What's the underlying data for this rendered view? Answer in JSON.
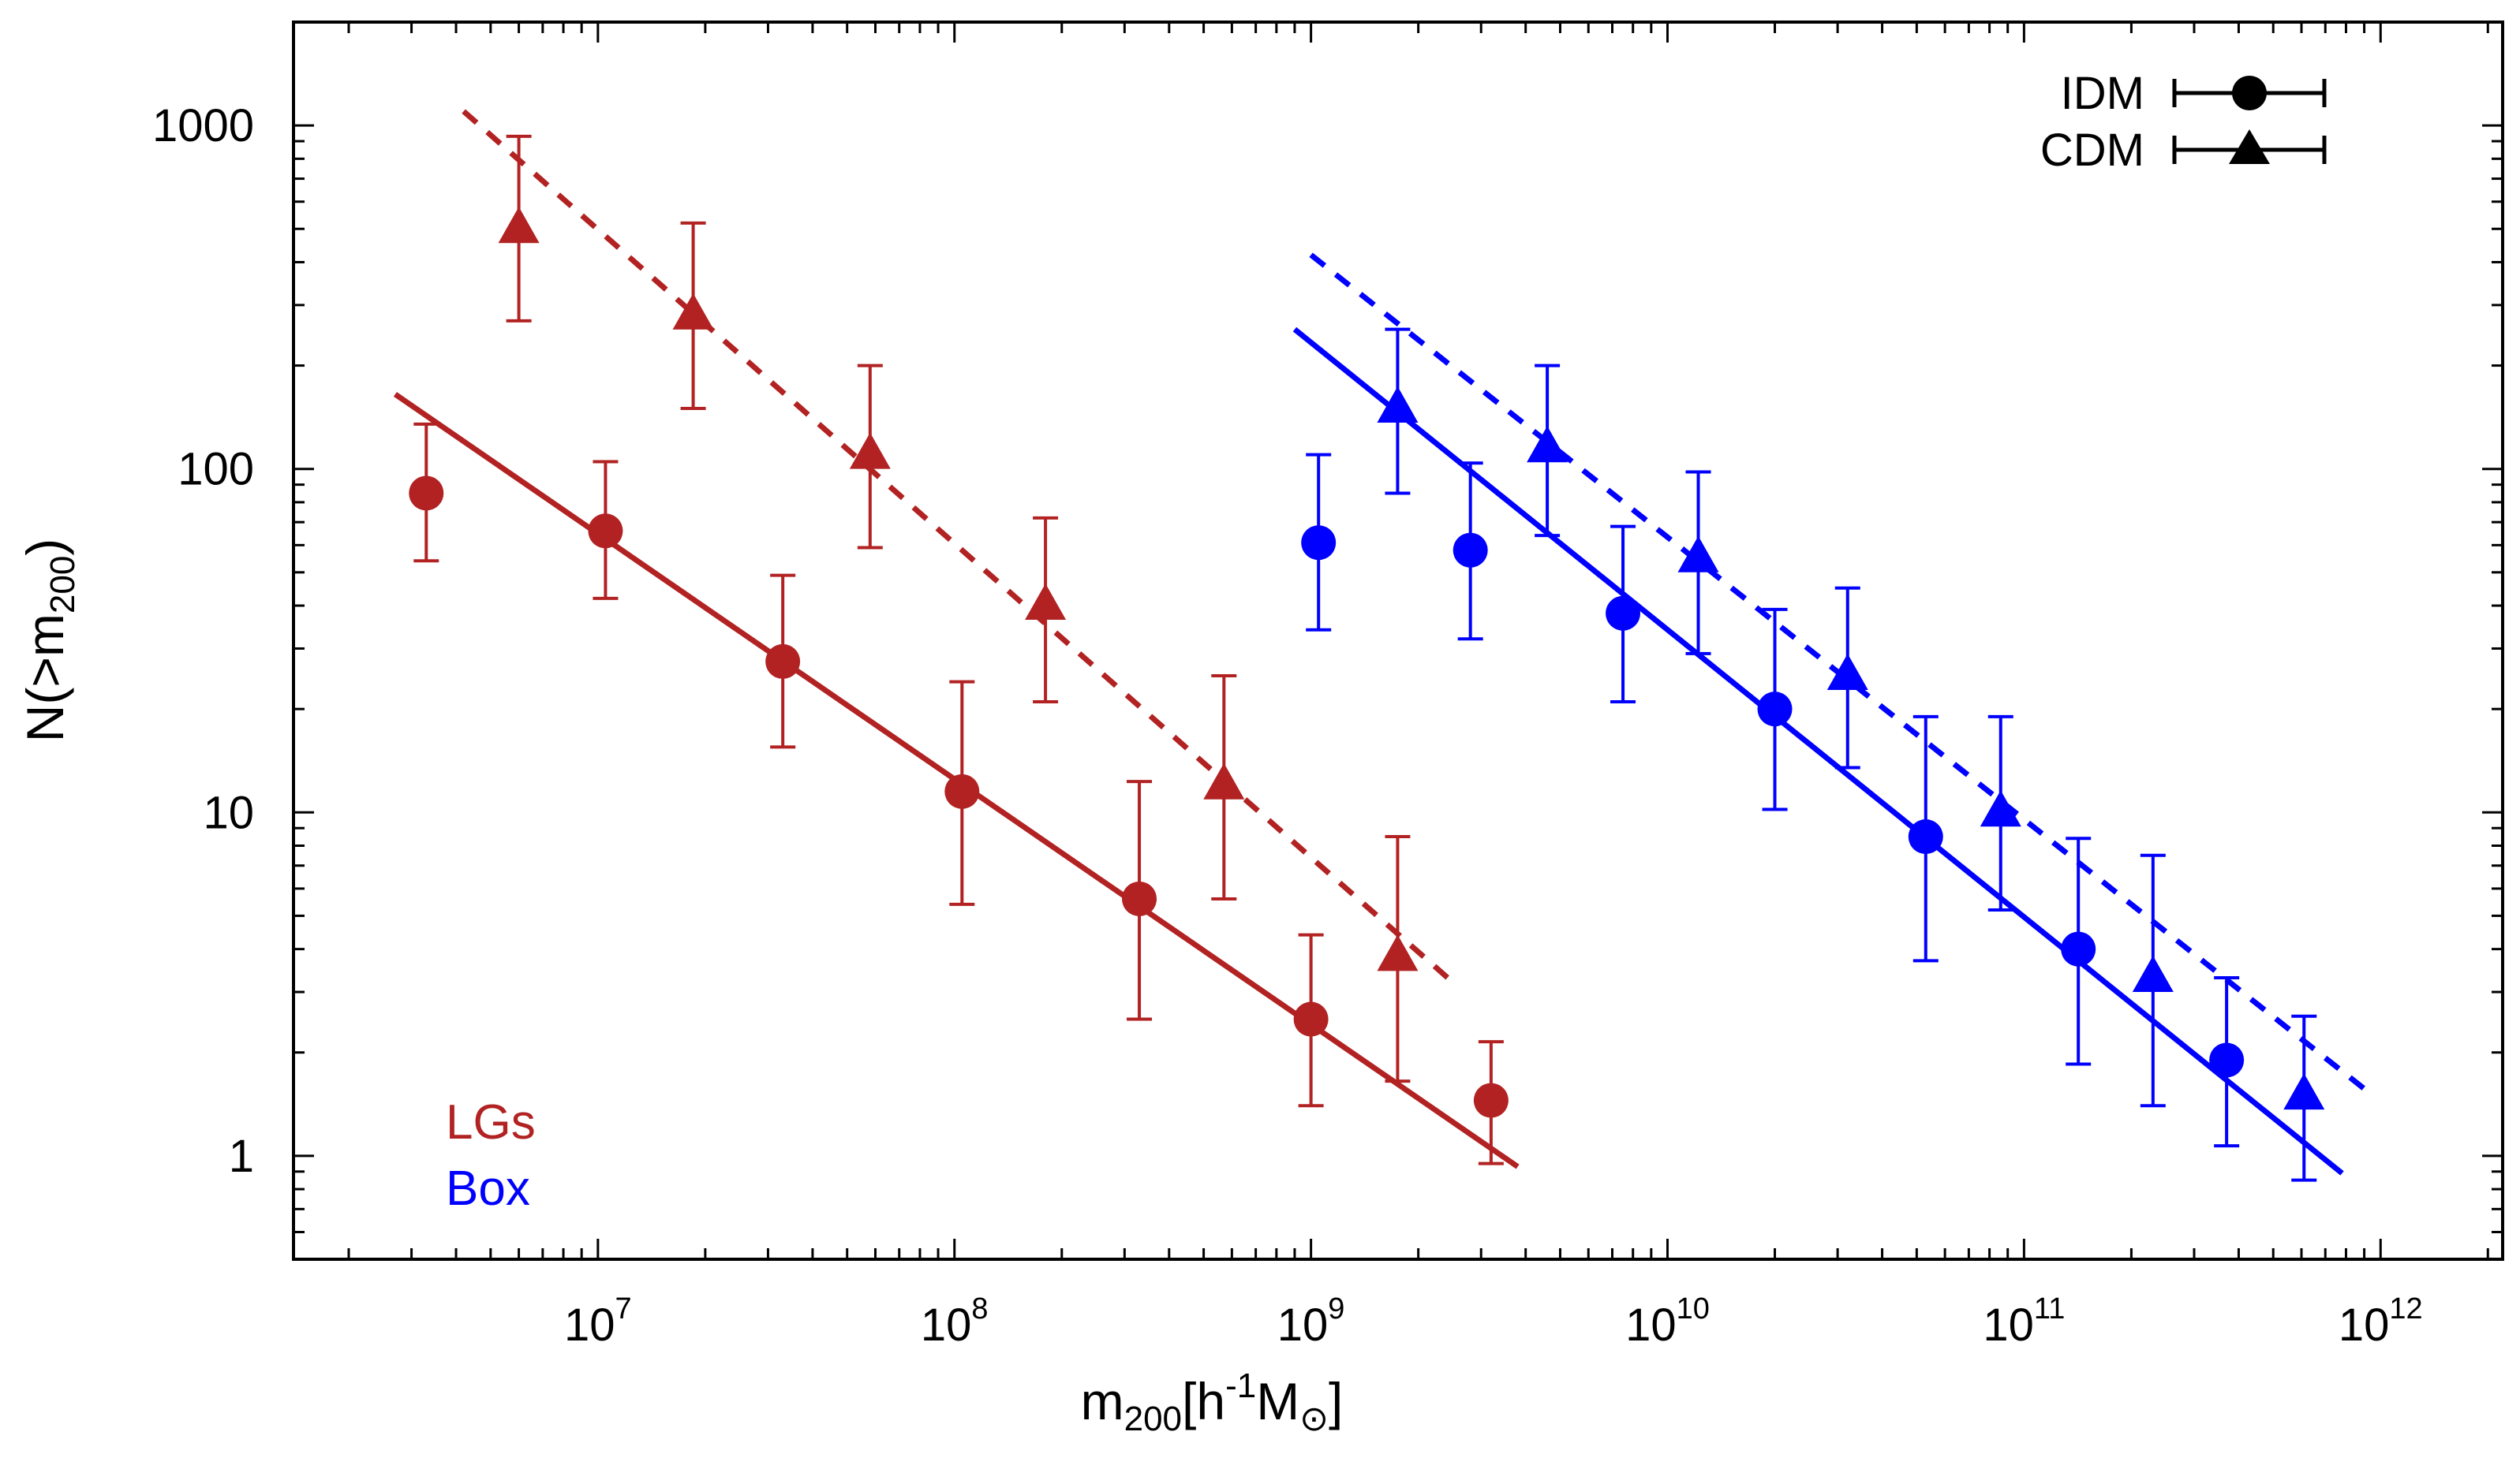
{
  "chart_data": {
    "type": "scatter",
    "title": "",
    "xlabel": {
      "base": "m",
      "sub": "200",
      "bracket_open": "[h",
      "sup": "-1",
      "unit": "M",
      "sun_symbol": "⊙",
      "bracket_close": "]"
    },
    "ylabel": {
      "prefix": "N(>m",
      "sub": "200",
      "suffix": ")"
    },
    "xscale": "log",
    "yscale": "log",
    "xlim": [
      1400000.0,
      2200000000000.0
    ],
    "ylim": [
      0.5,
      2000
    ],
    "x_ticks": [
      {
        "value": 10000000.0,
        "base": "10",
        "exp": "7"
      },
      {
        "value": 100000000.0,
        "base": "10",
        "exp": "8"
      },
      {
        "value": 1000000000.0,
        "base": "10",
        "exp": "9"
      },
      {
        "value": 10000000000.0,
        "base": "10",
        "exp": "10"
      },
      {
        "value": 100000000000.0,
        "base": "10",
        "exp": "11"
      },
      {
        "value": 1000000000000.0,
        "base": "10",
        "exp": "12"
      }
    ],
    "y_ticks": [
      {
        "value": 1,
        "label": "1"
      },
      {
        "value": 10,
        "label": "10"
      },
      {
        "value": 100,
        "label": "100"
      },
      {
        "value": 1000,
        "label": "1000"
      }
    ],
    "grid": false,
    "legend": {
      "position": "top-right",
      "entries": [
        {
          "label": "IDM",
          "marker": "circle"
        },
        {
          "label": "CDM",
          "marker": "triangle"
        }
      ]
    },
    "group_labels": [
      {
        "text": "LGs",
        "color": "#b22222"
      },
      {
        "text": "Box",
        "color": "#0000ff"
      }
    ],
    "series": [
      {
        "name": "LGs IDM",
        "model": "IDM",
        "group": "LGs",
        "color": "#b22222",
        "marker": "circle",
        "points": [
          {
            "x": 3300000.0,
            "y": 85,
            "ylo": 54,
            "yhi": 135
          },
          {
            "x": 10500000.0,
            "y": 66,
            "ylo": 42,
            "yhi": 105
          },
          {
            "x": 33000000.0,
            "y": 27.5,
            "ylo": 15.5,
            "yhi": 49
          },
          {
            "x": 105000000.0,
            "y": 11.5,
            "ylo": 5.4,
            "yhi": 24
          },
          {
            "x": 330000000.0,
            "y": 5.6,
            "ylo": 2.5,
            "yhi": 12.3
          },
          {
            "x": 1000000000.0,
            "y": 2.5,
            "ylo": 1.4,
            "yhi": 4.4
          },
          {
            "x": 3200000000.0,
            "y": 1.45,
            "ylo": 0.95,
            "yhi": 2.15
          }
        ]
      },
      {
        "name": "LGs CDM",
        "model": "CDM",
        "group": "LGs",
        "color": "#b22222",
        "marker": "triangle",
        "points": [
          {
            "x": 6000000.0,
            "y": 500,
            "ylo": 270,
            "yhi": 930
          },
          {
            "x": 18500000.0,
            "y": 280,
            "ylo": 150,
            "yhi": 520
          },
          {
            "x": 58000000.0,
            "y": 110,
            "ylo": 59,
            "yhi": 200
          },
          {
            "x": 180000000.0,
            "y": 40,
            "ylo": 21,
            "yhi": 72
          },
          {
            "x": 570000000.0,
            "y": 12,
            "ylo": 5.6,
            "yhi": 25
          },
          {
            "x": 1750000000.0,
            "y": 3.8,
            "ylo": 1.65,
            "yhi": 8.5
          }
        ]
      },
      {
        "name": "Box IDM",
        "model": "IDM",
        "group": "Box",
        "color": "#0000ff",
        "marker": "circle",
        "points": [
          {
            "x": 1050000000.0,
            "y": 61,
            "ylo": 34,
            "yhi": 110
          },
          {
            "x": 2800000000.0,
            "y": 58,
            "ylo": 32,
            "yhi": 104
          },
          {
            "x": 7500000000.0,
            "y": 38,
            "ylo": 21,
            "yhi": 68
          },
          {
            "x": 20000000000.0,
            "y": 20,
            "ylo": 10.2,
            "yhi": 39
          },
          {
            "x": 53000000000.0,
            "y": 8.5,
            "ylo": 3.7,
            "yhi": 19
          },
          {
            "x": 142000000000.0,
            "y": 4.0,
            "ylo": 1.85,
            "yhi": 8.4
          },
          {
            "x": 370000000000.0,
            "y": 1.9,
            "ylo": 1.07,
            "yhi": 3.3
          }
        ]
      },
      {
        "name": "Box CDM",
        "model": "CDM",
        "group": "Box",
        "color": "#0000ff",
        "marker": "triangle",
        "points": [
          {
            "x": 1750000000.0,
            "y": 150,
            "ylo": 85,
            "yhi": 255
          },
          {
            "x": 4600000000.0,
            "y": 115,
            "ylo": 64,
            "yhi": 200
          },
          {
            "x": 12200000000.0,
            "y": 55,
            "ylo": 29,
            "yhi": 98
          },
          {
            "x": 32000000000.0,
            "y": 25,
            "ylo": 13.5,
            "yhi": 45
          },
          {
            "x": 86000000000.0,
            "y": 10,
            "ylo": 5.2,
            "yhi": 19
          },
          {
            "x": 230000000000.0,
            "y": 3.3,
            "ylo": 1.4,
            "yhi": 7.5
          },
          {
            "x": 610000000000.0,
            "y": 1.5,
            "ylo": 0.85,
            "yhi": 2.55
          }
        ]
      }
    ],
    "fit_lines": [
      {
        "name": "LGs IDM fit",
        "color": "#b22222",
        "style": "solid",
        "from": [
          2700000.0,
          165
        ],
        "to": [
          3800000000.0,
          0.93
        ]
      },
      {
        "name": "LGs CDM fit",
        "color": "#b22222",
        "style": "dashed",
        "from": [
          4200000.0,
          1100
        ],
        "to": [
          2500000000.0,
          3.2
        ]
      },
      {
        "name": "Box IDM fit",
        "color": "#0000ff",
        "style": "solid",
        "from": [
          900000000.0,
          255
        ],
        "to": [
          780000000000.0,
          0.89
        ]
      },
      {
        "name": "Box CDM fit",
        "color": "#0000ff",
        "style": "dashed",
        "from": [
          1000000000.0,
          420
        ],
        "to": [
          950000000000.0,
          1.5
        ]
      }
    ]
  }
}
